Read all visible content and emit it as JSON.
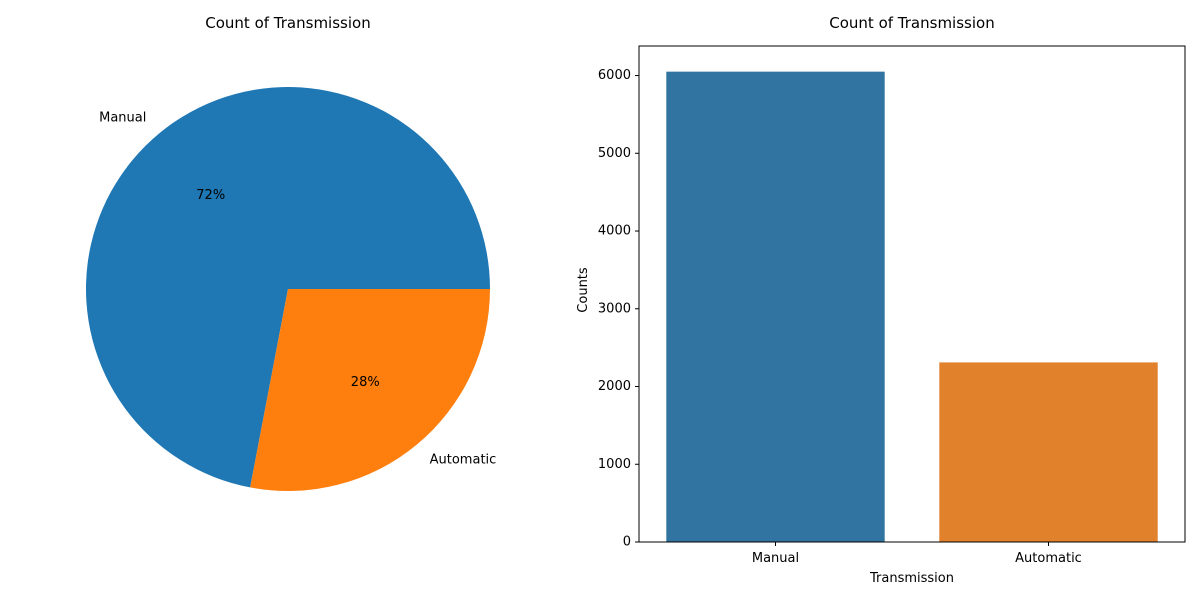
{
  "chart_data": [
    {
      "type": "pie",
      "title": "Count of Transmission",
      "categories": [
        "Manual",
        "Automatic"
      ],
      "values": [
        72,
        28
      ],
      "value_labels": [
        "72%",
        "28%"
      ],
      "colors": [
        "#1f77b4",
        "#ff7f0e"
      ]
    },
    {
      "type": "bar",
      "title": "Count of Transmission",
      "categories": [
        "Manual",
        "Automatic"
      ],
      "values": [
        6050,
        2310
      ],
      "xlabel": "Transmission",
      "ylabel": "Counts",
      "ylim": [
        0,
        6380
      ],
      "yticks": [
        0,
        1000,
        2000,
        3000,
        4000,
        5000,
        6000
      ],
      "colors": [
        "#3274a1",
        "#e1812c"
      ],
      "grid": false
    }
  ]
}
